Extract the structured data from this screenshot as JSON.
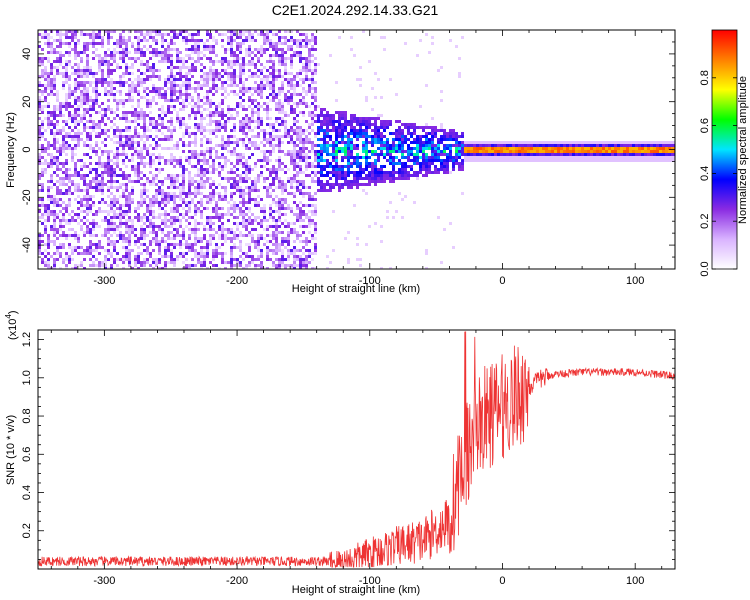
{
  "title": "C2E1.2024.292.14.33.G21",
  "chart_data": [
    {
      "type": "heatmap",
      "xlabel": "Height of straight line (km)",
      "ylabel": "Frequency (Hz)",
      "xlim": [
        -350,
        130
      ],
      "ylim": [
        -50,
        50
      ],
      "xticks": [
        -300,
        -200,
        -100,
        0,
        100
      ],
      "yticks": [
        -40,
        -20,
        0,
        20,
        40
      ],
      "colorbar": {
        "label": "Normalized spectral amplitude",
        "range": [
          0.0,
          1.0
        ],
        "ticks": [
          0.0,
          0.2,
          0.4,
          0.6,
          0.8
        ],
        "colors": [
          "#ffffff",
          "#d9b3ff",
          "#8a2be2",
          "#0000ff",
          "#00e5ff",
          "#00ff00",
          "#ffff00",
          "#ff8000",
          "#ff0000"
        ]
      },
      "regions": [
        {
          "x": [
            -350,
            -140
          ],
          "freq": [
            -50,
            50
          ],
          "amplitude": 0.2
        },
        {
          "x": [
            -140,
            -30
          ],
          "freq": [
            -20,
            20
          ],
          "amplitude": 0.3
        },
        {
          "x": [
            -30,
            130
          ],
          "freq": [
            -2,
            2
          ],
          "amplitude": 0.9
        }
      ]
    },
    {
      "type": "line",
      "xlabel": "Height of straight line (km)",
      "ylabel": "SNR (10 * v/v)",
      "yscale_label": "(x10",
      "yscale_exp": "4",
      "yscale_close": ")",
      "xlim": [
        -350,
        130
      ],
      "ylim": [
        0,
        1.25
      ],
      "xticks": [
        -300,
        -200,
        -100,
        0,
        100
      ],
      "yticks": [
        "0.2",
        "0.4",
        "0.6",
        "0.8",
        "1.0",
        "1.2"
      ],
      "color": "#ee3333",
      "series": [
        {
          "x": [
            -350,
            -200,
            -120,
            -100,
            -80,
            -60,
            -40,
            -30,
            -20,
            -10,
            0,
            10,
            20,
            30,
            40,
            60,
            80,
            100,
            130
          ],
          "values": [
            0.04,
            0.04,
            0.04,
            0.08,
            0.12,
            0.15,
            0.25,
            0.55,
            0.75,
            0.8,
            0.85,
            0.9,
            0.95,
            1.0,
            1.02,
            1.03,
            1.03,
            1.03,
            1.01
          ]
        }
      ]
    }
  ]
}
